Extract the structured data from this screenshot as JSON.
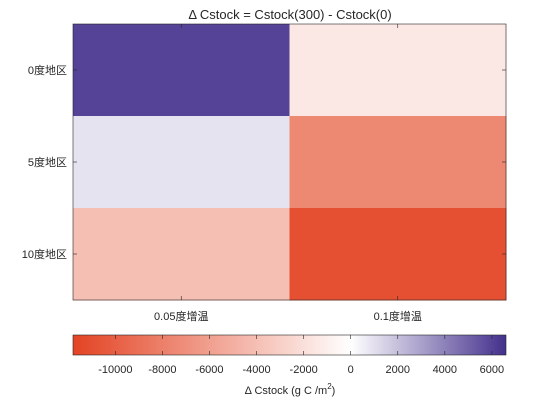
{
  "chart_data": {
    "type": "heatmap",
    "title": "Δ Cstock = Cstock(300) - Cstock(0)",
    "x_categories": [
      "0.05度增温",
      "0.1度增温"
    ],
    "y_categories": [
      "0度地区",
      "5度地区",
      "10度地区"
    ],
    "values": [
      [
        6000,
        -1500
      ],
      [
        900,
        -7500
      ],
      [
        -4000,
        -11000
      ]
    ],
    "colorbar": {
      "label": "Δ Cstock (g C /m",
      "label_sup": "2",
      "label_close": ")",
      "range": [
        -11800,
        6600
      ],
      "ticks": [
        -10000,
        -8000,
        -6000,
        -4000,
        -2000,
        0,
        2000,
        4000,
        6000
      ],
      "tick_labels": [
        "-10000",
        "-8000",
        "-6000",
        "-4000",
        "-2000",
        "0",
        "2000",
        "4000",
        "6000"
      ],
      "colormap": "diverging red-white-purple",
      "low_color": "#e34323",
      "mid_color": "#ffffff",
      "high_color": "#43308c"
    },
    "grid": false
  }
}
